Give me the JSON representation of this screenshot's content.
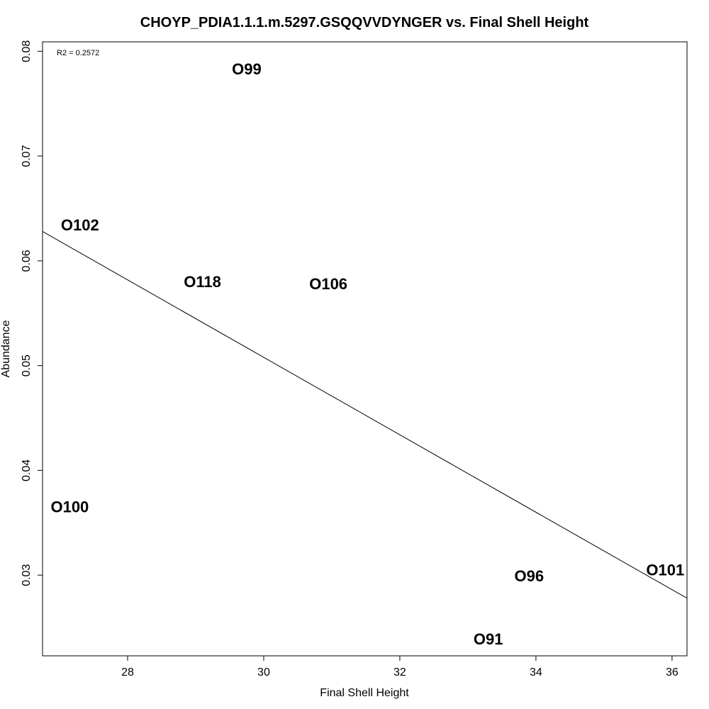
{
  "chart_data": {
    "type": "scatter",
    "title": "CHOYP_PDIA1.1.1.m.5297.GSQQVVDYNGER vs. Final Shell Height",
    "xlabel": "Final Shell Height",
    "ylabel": "Abundance",
    "xlim": [
      26.75,
      36.22
    ],
    "ylim": [
      0.0223,
      0.0809
    ],
    "x_ticks": [
      28,
      30,
      32,
      34,
      36
    ],
    "x_tick_labels": [
      "28",
      "30",
      "32",
      "34",
      "36"
    ],
    "y_ticks": [
      0.03,
      0.04,
      0.05,
      0.06,
      0.07,
      0.08
    ],
    "y_tick_labels": [
      "0.03",
      "0.04",
      "0.05",
      "0.06",
      "0.07",
      "0.08"
    ],
    "grid": false,
    "marker_style": "text-label",
    "points": [
      {
        "label": "O99",
        "x": 29.75,
        "y": 0.0783
      },
      {
        "label": "O102",
        "x": 27.3,
        "y": 0.0634
      },
      {
        "label": "O118",
        "x": 29.1,
        "y": 0.058
      },
      {
        "label": "O106",
        "x": 30.95,
        "y": 0.0578
      },
      {
        "label": "O100",
        "x": 27.15,
        "y": 0.0365
      },
      {
        "label": "O96",
        "x": 33.9,
        "y": 0.0299
      },
      {
        "label": "O101",
        "x": 35.9,
        "y": 0.0305
      },
      {
        "label": "O91",
        "x": 33.3,
        "y": 0.0239
      }
    ],
    "fit_line": {
      "x": [
        26.75,
        36.22
      ],
      "y": [
        0.0628,
        0.0278
      ]
    },
    "annotation": "R2 = 0.2572"
  }
}
